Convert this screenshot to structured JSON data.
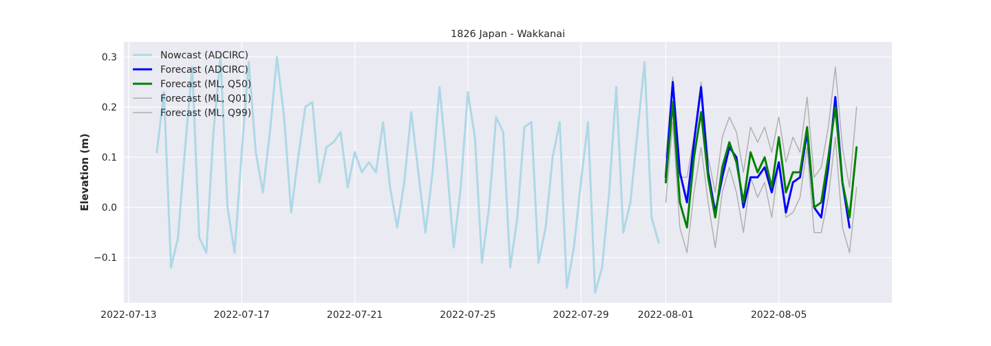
{
  "chart_data": {
    "type": "line",
    "title": "1826 Japan - Wakkanai",
    "xlabel": "",
    "ylabel": "Elevation (m)",
    "xlim": [
      "2022-07-12T20:00",
      "2022-08-09T00:00"
    ],
    "ylim": [
      -0.19,
      0.33
    ],
    "x_ticks": [
      "2022-07-13",
      "2022-07-17",
      "2022-07-21",
      "2022-07-25",
      "2022-07-29",
      "2022-08-01",
      "2022-08-05"
    ],
    "y_ticks": [
      -0.1,
      0.0,
      0.1,
      0.2,
      0.3
    ],
    "y_tick_labels": [
      "−0.1",
      "0.0",
      "0.1",
      "0.2",
      "0.3"
    ],
    "grid": true,
    "legend_position": "top-left",
    "background_color": "#eaeaf2",
    "series": [
      {
        "name": "Nowcast (ADCIRC)",
        "color": "#add8e6",
        "width": 3,
        "x": [
          "2022-07-14T00:00",
          "2022-07-14T06:00",
          "2022-07-14T12:00",
          "2022-07-14T18:00",
          "2022-07-15T00:00",
          "2022-07-15T06:00",
          "2022-07-15T12:00",
          "2022-07-15T18:00",
          "2022-07-16T00:00",
          "2022-07-16T06:00",
          "2022-07-16T12:00",
          "2022-07-16T18:00",
          "2022-07-17T00:00",
          "2022-07-17T06:00",
          "2022-07-17T12:00",
          "2022-07-17T18:00",
          "2022-07-18T00:00",
          "2022-07-18T06:00",
          "2022-07-18T12:00",
          "2022-07-18T18:00",
          "2022-07-19T00:00",
          "2022-07-19T06:00",
          "2022-07-19T12:00",
          "2022-07-19T18:00",
          "2022-07-20T00:00",
          "2022-07-20T06:00",
          "2022-07-20T12:00",
          "2022-07-20T18:00",
          "2022-07-21T00:00",
          "2022-07-21T06:00",
          "2022-07-21T12:00",
          "2022-07-21T18:00",
          "2022-07-22T00:00",
          "2022-07-22T06:00",
          "2022-07-22T12:00",
          "2022-07-22T18:00",
          "2022-07-23T00:00",
          "2022-07-23T06:00",
          "2022-07-23T12:00",
          "2022-07-23T18:00",
          "2022-07-24T00:00",
          "2022-07-24T06:00",
          "2022-07-24T12:00",
          "2022-07-24T18:00",
          "2022-07-25T00:00",
          "2022-07-25T06:00",
          "2022-07-25T12:00",
          "2022-07-25T18:00",
          "2022-07-26T00:00",
          "2022-07-26T06:00",
          "2022-07-26T12:00",
          "2022-07-26T18:00",
          "2022-07-27T00:00",
          "2022-07-27T06:00",
          "2022-07-27T12:00",
          "2022-07-27T18:00",
          "2022-07-28T00:00",
          "2022-07-28T06:00",
          "2022-07-28T12:00",
          "2022-07-28T18:00",
          "2022-07-29T00:00",
          "2022-07-29T06:00",
          "2022-07-29T12:00",
          "2022-07-29T18:00",
          "2022-07-30T00:00",
          "2022-07-30T06:00",
          "2022-07-30T12:00",
          "2022-07-30T18:00",
          "2022-07-31T00:00",
          "2022-07-31T06:00",
          "2022-07-31T12:00",
          "2022-07-31T18:00"
        ],
        "y": [
          0.11,
          0.23,
          -0.12,
          -0.06,
          0.12,
          0.28,
          -0.06,
          -0.09,
          0.15,
          0.3,
          0.0,
          -0.09,
          0.11,
          0.29,
          0.11,
          0.03,
          0.15,
          0.3,
          0.18,
          -0.01,
          0.1,
          0.2,
          0.21,
          0.05,
          0.12,
          0.13,
          0.15,
          0.04,
          0.11,
          0.07,
          0.09,
          0.07,
          0.17,
          0.04,
          -0.04,
          0.05,
          0.19,
          0.07,
          -0.05,
          0.07,
          0.24,
          0.09,
          -0.08,
          0.04,
          0.23,
          0.14,
          -0.11,
          0.0,
          0.18,
          0.15,
          -0.12,
          -0.02,
          0.16,
          0.17,
          -0.11,
          -0.04,
          0.1,
          0.17,
          -0.16,
          -0.08,
          0.05,
          0.17,
          -0.17,
          -0.12,
          0.03,
          0.24,
          -0.05,
          0.01,
          0.15,
          0.29,
          -0.02,
          -0.07
        ]
      },
      {
        "name": "Forecast (ADCIRC)",
        "color": "#0000ff",
        "width": 3,
        "x": [
          "2022-08-01T00:00",
          "2022-08-01T06:00",
          "2022-08-01T12:00",
          "2022-08-01T18:00",
          "2022-08-02T00:00",
          "2022-08-02T06:00",
          "2022-08-02T12:00",
          "2022-08-02T18:00",
          "2022-08-03T00:00",
          "2022-08-03T06:00",
          "2022-08-03T12:00",
          "2022-08-03T18:00",
          "2022-08-04T00:00",
          "2022-08-04T06:00",
          "2022-08-04T12:00",
          "2022-08-04T18:00",
          "2022-08-05T00:00",
          "2022-08-05T06:00",
          "2022-08-05T12:00",
          "2022-08-05T18:00",
          "2022-08-06T00:00",
          "2022-08-06T06:00",
          "2022-08-06T12:00",
          "2022-08-06T18:00",
          "2022-08-07T00:00",
          "2022-08-07T06:00",
          "2022-08-07T12:00",
          "2022-08-07T18:00"
        ],
        "y": [
          0.06,
          0.25,
          0.07,
          0.01,
          0.13,
          0.24,
          0.07,
          -0.01,
          0.06,
          0.12,
          0.1,
          0.0,
          0.06,
          0.06,
          0.08,
          0.03,
          0.09,
          -0.01,
          0.05,
          0.06,
          0.15,
          0.0,
          -0.02,
          0.08,
          0.22,
          0.05,
          -0.04,
          null
        ]
      },
      {
        "name": "Forecast (ML, Q50)",
        "color": "#008000",
        "width": 3,
        "x": [
          "2022-08-01T00:00",
          "2022-08-01T06:00",
          "2022-08-01T12:00",
          "2022-08-01T18:00",
          "2022-08-02T00:00",
          "2022-08-02T06:00",
          "2022-08-02T12:00",
          "2022-08-02T18:00",
          "2022-08-03T00:00",
          "2022-08-03T06:00",
          "2022-08-03T12:00",
          "2022-08-03T18:00",
          "2022-08-04T00:00",
          "2022-08-04T06:00",
          "2022-08-04T12:00",
          "2022-08-04T18:00",
          "2022-08-05T00:00",
          "2022-08-05T06:00",
          "2022-08-05T12:00",
          "2022-08-05T18:00",
          "2022-08-06T00:00",
          "2022-08-06T06:00",
          "2022-08-06T12:00",
          "2022-08-06T18:00",
          "2022-08-07T00:00",
          "2022-08-07T06:00",
          "2022-08-07T12:00",
          "2022-08-07T18:00"
        ],
        "y": [
          0.05,
          0.21,
          0.01,
          -0.04,
          0.1,
          0.19,
          0.06,
          -0.02,
          0.08,
          0.13,
          0.09,
          0.01,
          0.11,
          0.07,
          0.1,
          0.04,
          0.14,
          0.03,
          0.07,
          0.07,
          0.16,
          0.0,
          0.01,
          0.1,
          0.2,
          0.05,
          -0.02,
          0.12
        ]
      },
      {
        "name": "Forecast (ML, Q01)",
        "color": "#b0b0b0",
        "width": 1.5,
        "x": [
          "2022-08-01T00:00",
          "2022-08-01T06:00",
          "2022-08-01T12:00",
          "2022-08-01T18:00",
          "2022-08-02T00:00",
          "2022-08-02T06:00",
          "2022-08-02T12:00",
          "2022-08-02T18:00",
          "2022-08-03T00:00",
          "2022-08-03T06:00",
          "2022-08-03T12:00",
          "2022-08-03T18:00",
          "2022-08-04T00:00",
          "2022-08-04T06:00",
          "2022-08-04T12:00",
          "2022-08-04T18:00",
          "2022-08-05T00:00",
          "2022-08-05T06:00",
          "2022-08-05T12:00",
          "2022-08-05T18:00",
          "2022-08-06T00:00",
          "2022-08-06T06:00",
          "2022-08-06T12:00",
          "2022-08-06T18:00",
          "2022-08-07T00:00",
          "2022-08-07T06:00",
          "2022-08-07T12:00",
          "2022-08-07T18:00"
        ],
        "y": [
          0.01,
          0.17,
          -0.04,
          -0.09,
          0.03,
          0.12,
          0.01,
          -0.08,
          0.03,
          0.08,
          0.03,
          -0.05,
          0.06,
          0.02,
          0.05,
          -0.02,
          0.09,
          -0.02,
          -0.01,
          0.02,
          0.12,
          -0.05,
          -0.05,
          0.02,
          0.14,
          -0.04,
          -0.09,
          0.04
        ]
      },
      {
        "name": "Forecast (ML, Q99)",
        "color": "#b0b0b0",
        "width": 1.5,
        "x": [
          "2022-08-01T00:00",
          "2022-08-01T06:00",
          "2022-08-01T12:00",
          "2022-08-01T18:00",
          "2022-08-02T00:00",
          "2022-08-02T06:00",
          "2022-08-02T12:00",
          "2022-08-02T18:00",
          "2022-08-03T00:00",
          "2022-08-03T06:00",
          "2022-08-03T12:00",
          "2022-08-03T18:00",
          "2022-08-04T00:00",
          "2022-08-04T06:00",
          "2022-08-04T12:00",
          "2022-08-04T18:00",
          "2022-08-05T00:00",
          "2022-08-05T06:00",
          "2022-08-05T12:00",
          "2022-08-05T18:00",
          "2022-08-06T00:00",
          "2022-08-06T06:00",
          "2022-08-06T12:00",
          "2022-08-06T18:00",
          "2022-08-07T00:00",
          "2022-08-07T06:00",
          "2022-08-07T12:00",
          "2022-08-07T18:00"
        ],
        "y": [
          0.1,
          0.26,
          0.06,
          0.06,
          0.14,
          0.25,
          0.1,
          0.03,
          0.14,
          0.18,
          0.15,
          0.07,
          0.16,
          0.13,
          0.16,
          0.11,
          0.18,
          0.09,
          0.14,
          0.11,
          0.22,
          0.06,
          0.08,
          0.16,
          0.28,
          0.12,
          0.04,
          0.2
        ]
      }
    ]
  }
}
